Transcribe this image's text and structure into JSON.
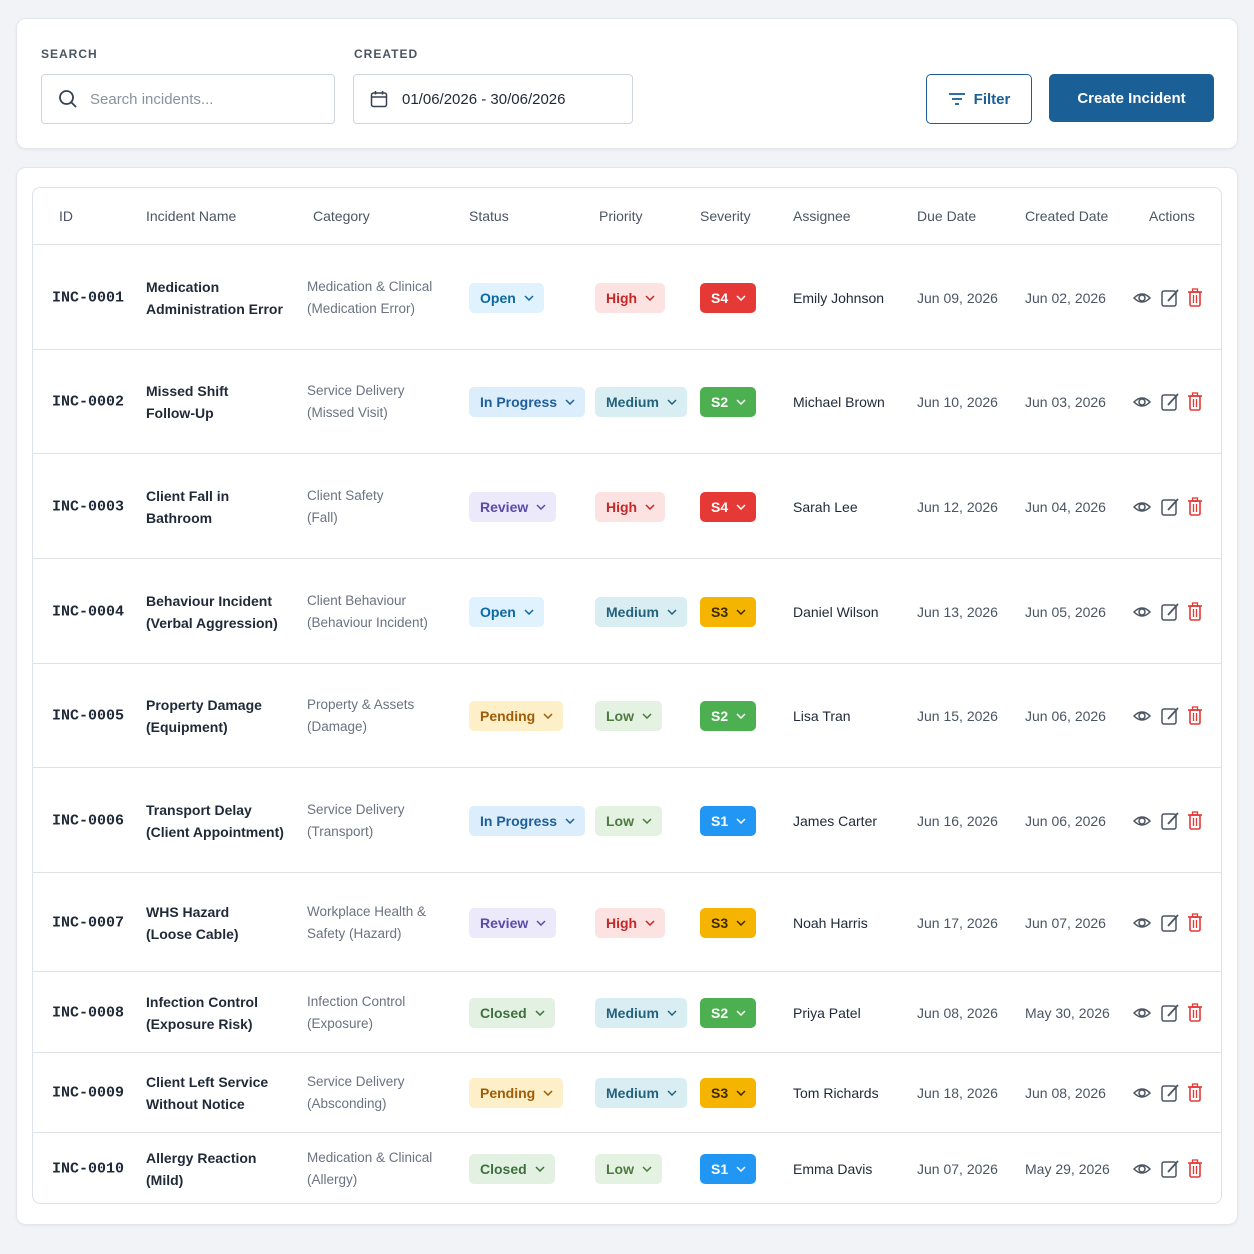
{
  "toolbar": {
    "search_label": "SEARCH",
    "search_placeholder": "Search incidents...",
    "created_label": "CREATED",
    "date_range": "01/06/2026 - 30/06/2026",
    "filter_button": "Filter",
    "create_button": "Create Incident"
  },
  "table": {
    "headers": [
      "ID",
      "Incident Name",
      "Category",
      "Status",
      "Priority",
      "Severity",
      "Assignee",
      "Due Date",
      "Created Date",
      "Actions"
    ],
    "rows": [
      {
        "id": "INC-0001",
        "name": [
          "Medication",
          "Administration Error"
        ],
        "category": [
          "Medication & Clinical",
          "(Medication Error)"
        ],
        "status": {
          "label": "Open",
          "bg": "#e0f2fe",
          "fg": "#0b6aa2"
        },
        "priority": {
          "label": "High",
          "bg": "#fde2e2",
          "fg": "#c62828"
        },
        "severity": {
          "label": "S4",
          "bg": "#e53935",
          "fg": "#ffffff"
        },
        "assignee": "Emily Johnson",
        "due": "Jun 09, 2026",
        "created": "Jun 02, 2026"
      },
      {
        "id": "INC-0002",
        "name": [
          "Missed Shift",
          "Follow-Up"
        ],
        "category": [
          "Service Delivery",
          "(Missed Visit)"
        ],
        "status": {
          "label": "In Progress",
          "bg": "#dcedfb",
          "fg": "#1f5f99"
        },
        "priority": {
          "label": "Medium",
          "bg": "#d9eef3",
          "fg": "#23627a"
        },
        "severity": {
          "label": "S2",
          "bg": "#4caf50",
          "fg": "#ffffff"
        },
        "assignee": "Michael Brown",
        "due": "Jun 10, 2026",
        "created": "Jun 03, 2026"
      },
      {
        "id": "INC-0003",
        "name": [
          "Client Fall in",
          "Bathroom"
        ],
        "category": [
          "Client Safety",
          "(Fall)"
        ],
        "status": {
          "label": "Review",
          "bg": "#ece9fb",
          "fg": "#5b4aa8"
        },
        "priority": {
          "label": "High",
          "bg": "#fde2e2",
          "fg": "#c62828"
        },
        "severity": {
          "label": "S4",
          "bg": "#e53935",
          "fg": "#ffffff"
        },
        "assignee": "Sarah Lee",
        "due": "Jun 12, 2026",
        "created": "Jun 04, 2026"
      },
      {
        "id": "INC-0004",
        "name": [
          "Behaviour Incident",
          "(Verbal Aggression)"
        ],
        "category": [
          "Client Behaviour",
          "(Behaviour Incident)"
        ],
        "status": {
          "label": "Open",
          "bg": "#e0f2fe",
          "fg": "#0b6aa2"
        },
        "priority": {
          "label": "Medium",
          "bg": "#d9eef3",
          "fg": "#23627a"
        },
        "severity": {
          "label": "S3",
          "bg": "#f5b400",
          "fg": "#3b2a00"
        },
        "assignee": "Daniel Wilson",
        "due": "Jun 13, 2026",
        "created": "Jun 05, 2026"
      },
      {
        "id": "INC-0005",
        "name": [
          "Property Damage",
          "(Equipment)"
        ],
        "category": [
          "Property & Assets",
          "(Damage)"
        ],
        "status": {
          "label": "Pending",
          "bg": "#fdf0c8",
          "fg": "#a15c07"
        },
        "priority": {
          "label": "Low",
          "bg": "#e4f2e1",
          "fg": "#4d7a3f"
        },
        "severity": {
          "label": "S2",
          "bg": "#4caf50",
          "fg": "#ffffff"
        },
        "assignee": "Lisa Tran",
        "due": "Jun 15, 2026",
        "created": "Jun 06, 2026"
      },
      {
        "id": "INC-0006",
        "name": [
          "Transport Delay",
          "(Client Appointment)"
        ],
        "category": [
          "Service Delivery",
          "(Transport)"
        ],
        "status": {
          "label": "In Progress",
          "bg": "#dcedfb",
          "fg": "#1f5f99"
        },
        "priority": {
          "label": "Low",
          "bg": "#e4f2e1",
          "fg": "#4d7a3f"
        },
        "severity": {
          "label": "S1",
          "bg": "#2196f3",
          "fg": "#ffffff"
        },
        "assignee": "James Carter",
        "due": "Jun 16, 2026",
        "created": "Jun 06, 2026"
      },
      {
        "id": "INC-0007",
        "name": [
          "WHS Hazard",
          "(Loose Cable)"
        ],
        "category": [
          "Workplace Health &",
          "Safety (Hazard)"
        ],
        "status": {
          "label": "Review",
          "bg": "#ece9fb",
          "fg": "#5b4aa8"
        },
        "priority": {
          "label": "High",
          "bg": "#fde2e2",
          "fg": "#c62828"
        },
        "severity": {
          "label": "S3",
          "bg": "#f5b400",
          "fg": "#3b2a00"
        },
        "assignee": "Noah Harris",
        "due": "Jun 17, 2026",
        "created": "Jun 07, 2026"
      },
      {
        "id": "INC-0008",
        "name": [
          "Infection Control",
          "(Exposure Risk)"
        ],
        "category": [
          "Infection Control",
          "(Exposure)"
        ],
        "status": {
          "label": "Closed",
          "bg": "#e3f1e3",
          "fg": "#3f6f3f"
        },
        "priority": {
          "label": "Medium",
          "bg": "#d9eef3",
          "fg": "#23627a"
        },
        "severity": {
          "label": "S2",
          "bg": "#4caf50",
          "fg": "#ffffff"
        },
        "assignee": "Priya Patel",
        "due": "Jun 08, 2026",
        "created": "May 30, 2026"
      },
      {
        "id": "INC-0009",
        "name": [
          "Client Left Service",
          "Without Notice"
        ],
        "category": [
          "Service Delivery",
          "(Absconding)"
        ],
        "status": {
          "label": "Pending",
          "bg": "#fdf0c8",
          "fg": "#a15c07"
        },
        "priority": {
          "label": "Medium",
          "bg": "#d9eef3",
          "fg": "#23627a"
        },
        "severity": {
          "label": "S3",
          "bg": "#f5b400",
          "fg": "#3b2a00"
        },
        "assignee": "Tom Richards",
        "due": "Jun 18, 2026",
        "created": "Jun 08, 2026"
      },
      {
        "id": "INC-0010",
        "name": [
          "Allergy Reaction",
          "(Mild)"
        ],
        "category": [
          "Medication & Clinical",
          "(Allergy)"
        ],
        "status": {
          "label": "Closed",
          "bg": "#e3f1e3",
          "fg": "#3f6f3f"
        },
        "priority": {
          "label": "Low",
          "bg": "#e4f2e1",
          "fg": "#4d7a3f"
        },
        "severity": {
          "label": "S1",
          "bg": "#2196f3",
          "fg": "#ffffff"
        },
        "assignee": "Emma Davis",
        "due": "Jun 07, 2026",
        "created": "May 29, 2026"
      }
    ]
  }
}
